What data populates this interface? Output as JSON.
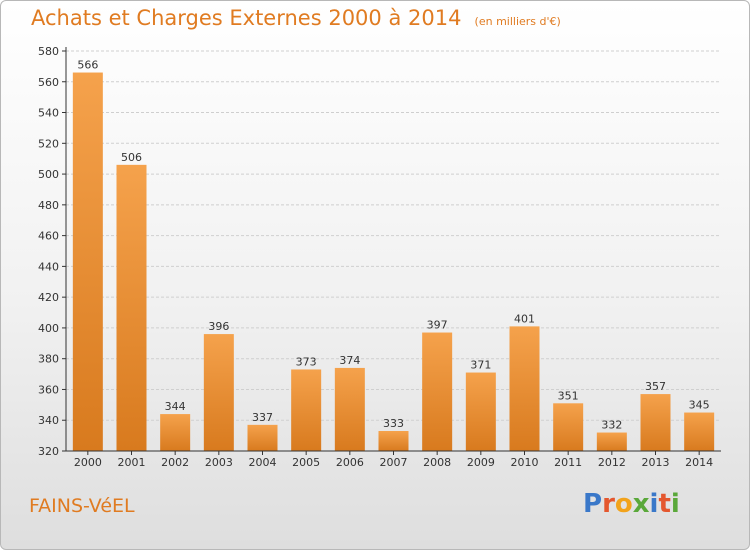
{
  "header": {
    "title": "Achats et Charges Externes 2000 à 2014",
    "unit": "(en milliers d'€)"
  },
  "footer": {
    "commune": "FAINS-VéEL",
    "brand": "Proxiti",
    "brand_colors": [
      "#3a78c9",
      "#e4572e",
      "#f2a31b",
      "#5aa83a",
      "#3a78c9",
      "#e4572e",
      "#5aa83a"
    ]
  },
  "colors": {
    "bar_light": "#f5a24c",
    "bar_dark": "#d87a1e",
    "accent": "#e07b21",
    "grid": "#cfcfcf",
    "axis": "#333333"
  },
  "chart_data": {
    "type": "bar",
    "title": "Achats et Charges Externes 2000 à 2014",
    "subtitle": "(en milliers d'€)",
    "xlabel": "",
    "ylabel": "",
    "categories": [
      "2000",
      "2001",
      "2002",
      "2003",
      "2004",
      "2005",
      "2006",
      "2007",
      "2008",
      "2009",
      "2010",
      "2011",
      "2012",
      "2013",
      "2014"
    ],
    "values": [
      566,
      506,
      344,
      396,
      337,
      373,
      374,
      333,
      397,
      371,
      401,
      351,
      332,
      357,
      345
    ],
    "ylim": [
      320,
      580
    ],
    "yticks": [
      320,
      340,
      360,
      380,
      400,
      420,
      440,
      460,
      480,
      500,
      520,
      540,
      560,
      580
    ],
    "grid": true,
    "legend": "none"
  }
}
